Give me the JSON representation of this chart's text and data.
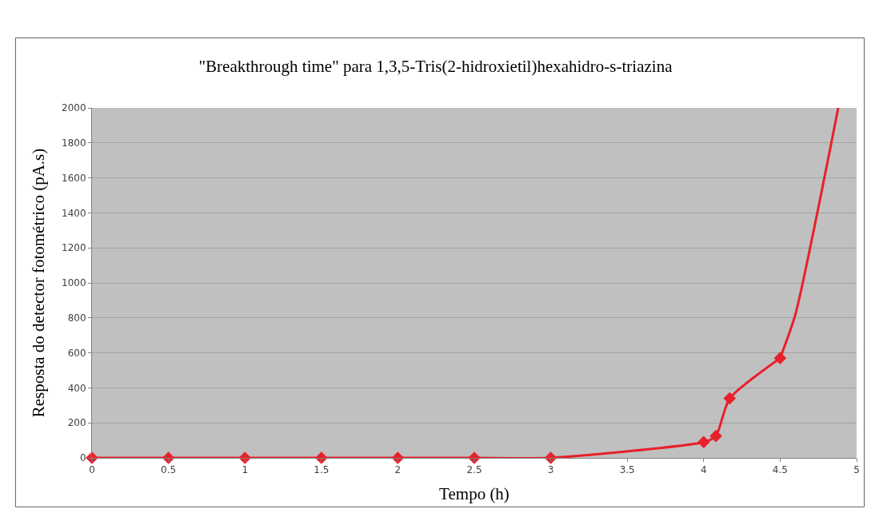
{
  "chart_data": {
    "type": "line",
    "title": "\"Breakthrough time\" para 1,3,5-Tris(2-hidroxietil)hexahidro-s-triazina",
    "xlabel": "Tempo (h)",
    "ylabel": "Resposta do detector fotométrico (pA.s)",
    "series": [
      {
        "color": "#e8202a",
        "marker": "diamond",
        "x": [
          0,
          0.5,
          1,
          1.5,
          2,
          2.5,
          3,
          4,
          4.08,
          4.17,
          4.5
        ],
        "values": [
          0,
          0,
          0,
          0,
          0,
          0,
          0,
          90,
          125,
          340,
          570
        ]
      },
      {
        "color": "#e8202a",
        "marker": "none",
        "x": [
          4.5,
          4.6,
          4.88
        ],
        "values": [
          570,
          820,
          2000
        ]
      }
    ],
    "xlim": [
      0,
      5
    ],
    "xticks": [
      0,
      0.5,
      1,
      1.5,
      2,
      2.5,
      3,
      3.5,
      4,
      4.5,
      5
    ],
    "ylim": [
      0,
      2000
    ],
    "yticks": [
      0,
      200,
      400,
      600,
      800,
      1000,
      1200,
      1400,
      1600,
      1800,
      2000
    ],
    "grid": "y"
  }
}
